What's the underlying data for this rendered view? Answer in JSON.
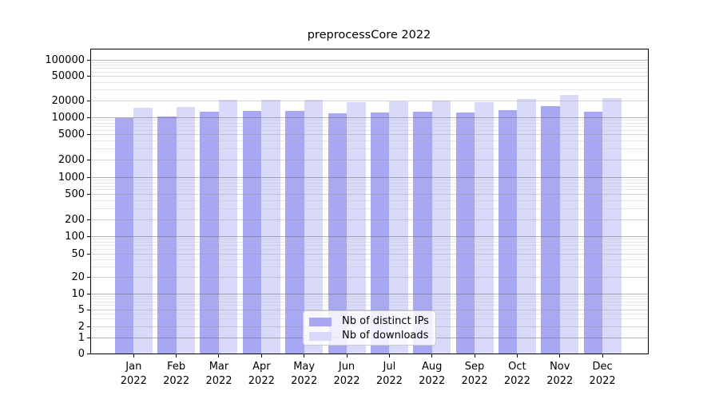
{
  "chart_data": {
    "type": "bar",
    "title": "preprocessCore 2022",
    "months": [
      "Jan",
      "Feb",
      "Mar",
      "Apr",
      "May",
      "Jun",
      "Jul",
      "Aug",
      "Sep",
      "Oct",
      "Nov",
      "Dec"
    ],
    "year": "2022",
    "series": [
      {
        "name": "Nb of distinct IPs",
        "color": "#a7a7f3",
        "values": [
          9900,
          10600,
          12900,
          13300,
          13200,
          12000,
          12400,
          12900,
          12500,
          13400,
          15700,
          12700
        ]
      },
      {
        "name": "Nb of downloads",
        "color": "#d9d9fa",
        "values": [
          14900,
          15600,
          20600,
          20500,
          20300,
          18900,
          19100,
          20100,
          18900,
          20900,
          25000,
          21800
        ]
      }
    ],
    "yticks": [
      0,
      1,
      2,
      5,
      10,
      20,
      50,
      100,
      200,
      500,
      1000,
      2000,
      5000,
      10000,
      20000,
      50000,
      100000
    ],
    "yscale": "log (zero baseline)",
    "ylim": [
      0,
      150000
    ],
    "xlabel": "",
    "ylabel": "",
    "grid": true,
    "legend_position": "lower center inside plot"
  }
}
